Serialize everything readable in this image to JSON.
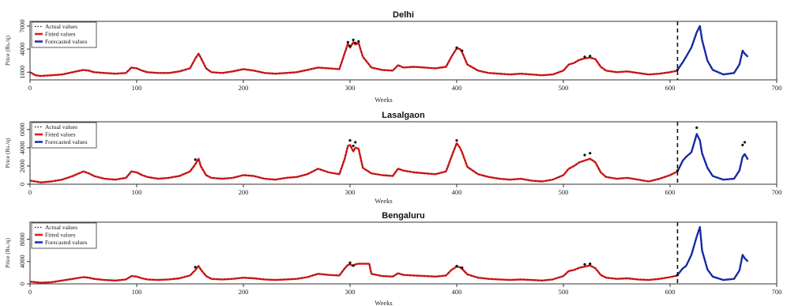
{
  "page": {
    "colors": {
      "actual": "#111111",
      "fitted": "#dd1c1c",
      "forecast": "#1a2fb5",
      "frame": "#333333",
      "vline": "#111111"
    }
  },
  "chart_data": [
    {
      "type": "line",
      "title": "Delhi",
      "xlabel": "Weeks",
      "ylabel": "Price (Rs./q)",
      "xlim": [
        0,
        700
      ],
      "ylim": [
        0,
        7200
      ],
      "xticks": [
        "0",
        "100",
        "200",
        "300",
        "400",
        "500",
        "600",
        "700"
      ],
      "yticks": [
        "1000",
        "4000",
        "7000"
      ],
      "ytick_values": [
        1000,
        4000,
        7000
      ],
      "split_week": 607,
      "legend": {
        "position": "top-left",
        "entries": [
          "Actual values",
          "Fitted values",
          "Forecasted values"
        ]
      },
      "series": [
        {
          "name": "Fitted values",
          "x": [
            0,
            5,
            10,
            20,
            30,
            40,
            50,
            55,
            60,
            70,
            80,
            90,
            95,
            100,
            105,
            110,
            120,
            130,
            140,
            150,
            155,
            158,
            160,
            165,
            170,
            180,
            190,
            200,
            210,
            220,
            230,
            240,
            250,
            260,
            270,
            280,
            290,
            295,
            298,
            300,
            303,
            305,
            308,
            312,
            320,
            330,
            340,
            345,
            350,
            360,
            370,
            380,
            390,
            395,
            400,
            403,
            405,
            410,
            420,
            430,
            440,
            450,
            460,
            470,
            480,
            490,
            500,
            505,
            510,
            515,
            520,
            525,
            530,
            535,
            540,
            550,
            560,
            570,
            580,
            590,
            600,
            607
          ],
          "values": [
            1000,
            600,
            500,
            600,
            700,
            1000,
            1300,
            1200,
            1000,
            900,
            800,
            900,
            1600,
            1500,
            1200,
            1000,
            900,
            900,
            1100,
            1500,
            2800,
            3400,
            2900,
            1500,
            1000,
            900,
            1100,
            1400,
            1200,
            900,
            800,
            900,
            1000,
            1300,
            1600,
            1500,
            1400,
            3500,
            4700,
            4200,
            4900,
            4600,
            4800,
            3000,
            1600,
            1300,
            1200,
            1900,
            1600,
            1700,
            1600,
            1500,
            1700,
            3000,
            4100,
            4000,
            3600,
            2000,
            1200,
            900,
            800,
            700,
            800,
            700,
            600,
            700,
            1200,
            2000,
            2200,
            2600,
            2800,
            2900,
            2700,
            1700,
            1200,
            1000,
            1100,
            900,
            700,
            800,
            1000,
            1200
          ]
        },
        {
          "name": "Actual values",
          "x": [
            298,
            300,
            303,
            305,
            308,
            400,
            405,
            520,
            525,
            607
          ],
          "values": [
            4900,
            4400,
            5200,
            4800,
            5000,
            4200,
            3800,
            3000,
            3100,
            1300
          ]
        },
        {
          "name": "Forecasted values",
          "x": [
            607,
            612,
            615,
            620,
            625,
            628,
            630,
            635,
            640,
            650,
            660,
            665,
            668,
            670,
            673
          ],
          "values": [
            1300,
            2300,
            3000,
            4200,
            6200,
            7000,
            5200,
            2500,
            1300,
            700,
            900,
            2000,
            3800,
            3400,
            3000
          ]
        }
      ]
    },
    {
      "type": "line",
      "title": "Lasalgaon",
      "xlabel": "Weeks",
      "ylabel": "Price (Rs./q)",
      "xlim": [
        0,
        700
      ],
      "ylim": [
        0,
        6500
      ],
      "xticks": [
        "0",
        "100",
        "200",
        "300",
        "400",
        "500",
        "600",
        "700"
      ],
      "yticks": [
        "0",
        "2000",
        "4000",
        "6000"
      ],
      "ytick_values": [
        0,
        2000,
        4000,
        6000
      ],
      "split_week": 607,
      "legend": {
        "position": "top-left",
        "entries": [
          "Actual values",
          "Fitted values",
          "Forecasted values"
        ]
      },
      "series": [
        {
          "name": "Fitted values",
          "x": [
            0,
            5,
            10,
            20,
            30,
            40,
            50,
            55,
            60,
            70,
            80,
            90,
            95,
            100,
            105,
            110,
            120,
            130,
            140,
            150,
            155,
            158,
            160,
            165,
            170,
            180,
            190,
            200,
            210,
            220,
            230,
            240,
            250,
            260,
            270,
            280,
            290,
            295,
            298,
            300,
            303,
            305,
            308,
            312,
            320,
            330,
            340,
            345,
            350,
            360,
            370,
            380,
            390,
            395,
            400,
            403,
            405,
            410,
            420,
            430,
            440,
            450,
            460,
            470,
            480,
            490,
            500,
            505,
            510,
            515,
            520,
            525,
            530,
            535,
            540,
            550,
            560,
            570,
            580,
            590,
            600,
            607
          ],
          "values": [
            400,
            300,
            200,
            300,
            500,
            900,
            1400,
            1200,
            900,
            600,
            500,
            700,
            1400,
            1300,
            1000,
            800,
            600,
            700,
            900,
            1400,
            2200,
            2800,
            2000,
            1000,
            700,
            600,
            700,
            1000,
            900,
            600,
            500,
            700,
            800,
            1100,
            1700,
            1300,
            1100,
            2800,
            4200,
            4300,
            3600,
            4000,
            3900,
            1800,
            1200,
            1000,
            900,
            1700,
            1500,
            1300,
            1200,
            1100,
            1400,
            3000,
            4500,
            4000,
            3500,
            1900,
            1100,
            800,
            600,
            500,
            600,
            400,
            300,
            500,
            1000,
            1700,
            2000,
            2400,
            2600,
            2800,
            2400,
            1300,
            800,
            600,
            700,
            500,
            300,
            600,
            1000,
            1400
          ]
        },
        {
          "name": "Actual values",
          "x": [
            155,
            300,
            303,
            305,
            400,
            520,
            525,
            607,
            625,
            668,
            670
          ],
          "values": [
            2700,
            4800,
            4200,
            4600,
            4800,
            3200,
            3400,
            1500,
            6200,
            4300,
            4600
          ]
        },
        {
          "name": "Forecasted values",
          "x": [
            607,
            612,
            615,
            620,
            625,
            628,
            630,
            635,
            640,
            650,
            660,
            665,
            668,
            670,
            673
          ],
          "values": [
            1400,
            2600,
            3000,
            3500,
            5500,
            4800,
            3400,
            1800,
            900,
            500,
            600,
            1500,
            3000,
            3300,
            2700
          ]
        }
      ]
    },
    {
      "type": "line",
      "title": "Bengaluru",
      "xlabel": "Weeks",
      "ylabel": "Price (Rs./q)",
      "xlim": [
        0,
        700
      ],
      "ylim": [
        0,
        10500
      ],
      "xticks": [
        "0",
        "100",
        "200",
        "300",
        "400",
        "500",
        "600",
        "700"
      ],
      "yticks": [
        "0",
        "4000",
        "8000"
      ],
      "ytick_values": [
        0,
        4000,
        8000
      ],
      "split_week": 607,
      "legend": {
        "position": "top-left",
        "entries": [
          "Actual values",
          "Fitted values",
          "Forecasted values"
        ]
      },
      "series": [
        {
          "name": "Fitted values",
          "x": [
            0,
            5,
            10,
            20,
            30,
            40,
            50,
            55,
            60,
            70,
            80,
            90,
            95,
            100,
            105,
            110,
            120,
            130,
            140,
            150,
            155,
            158,
            160,
            165,
            170,
            180,
            190,
            200,
            210,
            220,
            230,
            240,
            250,
            260,
            270,
            280,
            290,
            295,
            298,
            300,
            303,
            305,
            308,
            312,
            315,
            318,
            320,
            330,
            340,
            345,
            350,
            360,
            370,
            380,
            390,
            395,
            400,
            403,
            405,
            410,
            420,
            430,
            440,
            450,
            460,
            470,
            480,
            490,
            500,
            505,
            510,
            515,
            520,
            525,
            530,
            535,
            540,
            550,
            560,
            570,
            580,
            590,
            600,
            607
          ],
          "values": [
            400,
            300,
            200,
            300,
            600,
            900,
            1200,
            1100,
            900,
            700,
            600,
            800,
            1400,
            1300,
            1000,
            800,
            700,
            800,
            1000,
            1500,
            2500,
            3200,
            2600,
            1400,
            900,
            800,
            900,
            1100,
            1000,
            800,
            700,
            800,
            900,
            1200,
            1800,
            1600,
            1500,
            2800,
            3400,
            3500,
            3200,
            3500,
            3600,
            3600,
            3600,
            3600,
            1800,
            1400,
            1300,
            1900,
            1600,
            1500,
            1400,
            1300,
            1500,
            2500,
            3100,
            3000,
            2700,
            1700,
            1100,
            900,
            800,
            700,
            800,
            700,
            600,
            800,
            1400,
            2300,
            2500,
            2900,
            3100,
            3300,
            2800,
            1600,
            1100,
            900,
            1000,
            800,
            700,
            900,
            1200,
            1500
          ]
        },
        {
          "name": "Actual values",
          "x": [
            155,
            300,
            303,
            400,
            405,
            520,
            525,
            607
          ],
          "values": [
            3000,
            3800,
            3300,
            3200,
            2900,
            3500,
            3600,
            1600
          ]
        },
        {
          "name": "Forecasted values",
          "x": [
            607,
            612,
            615,
            620,
            625,
            628,
            630,
            635,
            640,
            650,
            660,
            665,
            668,
            670,
            673
          ],
          "values": [
            1600,
            2800,
            3200,
            5200,
            8500,
            10200,
            6000,
            2600,
            1300,
            700,
            900,
            2400,
            5200,
            4600,
            4000
          ]
        }
      ]
    }
  ]
}
